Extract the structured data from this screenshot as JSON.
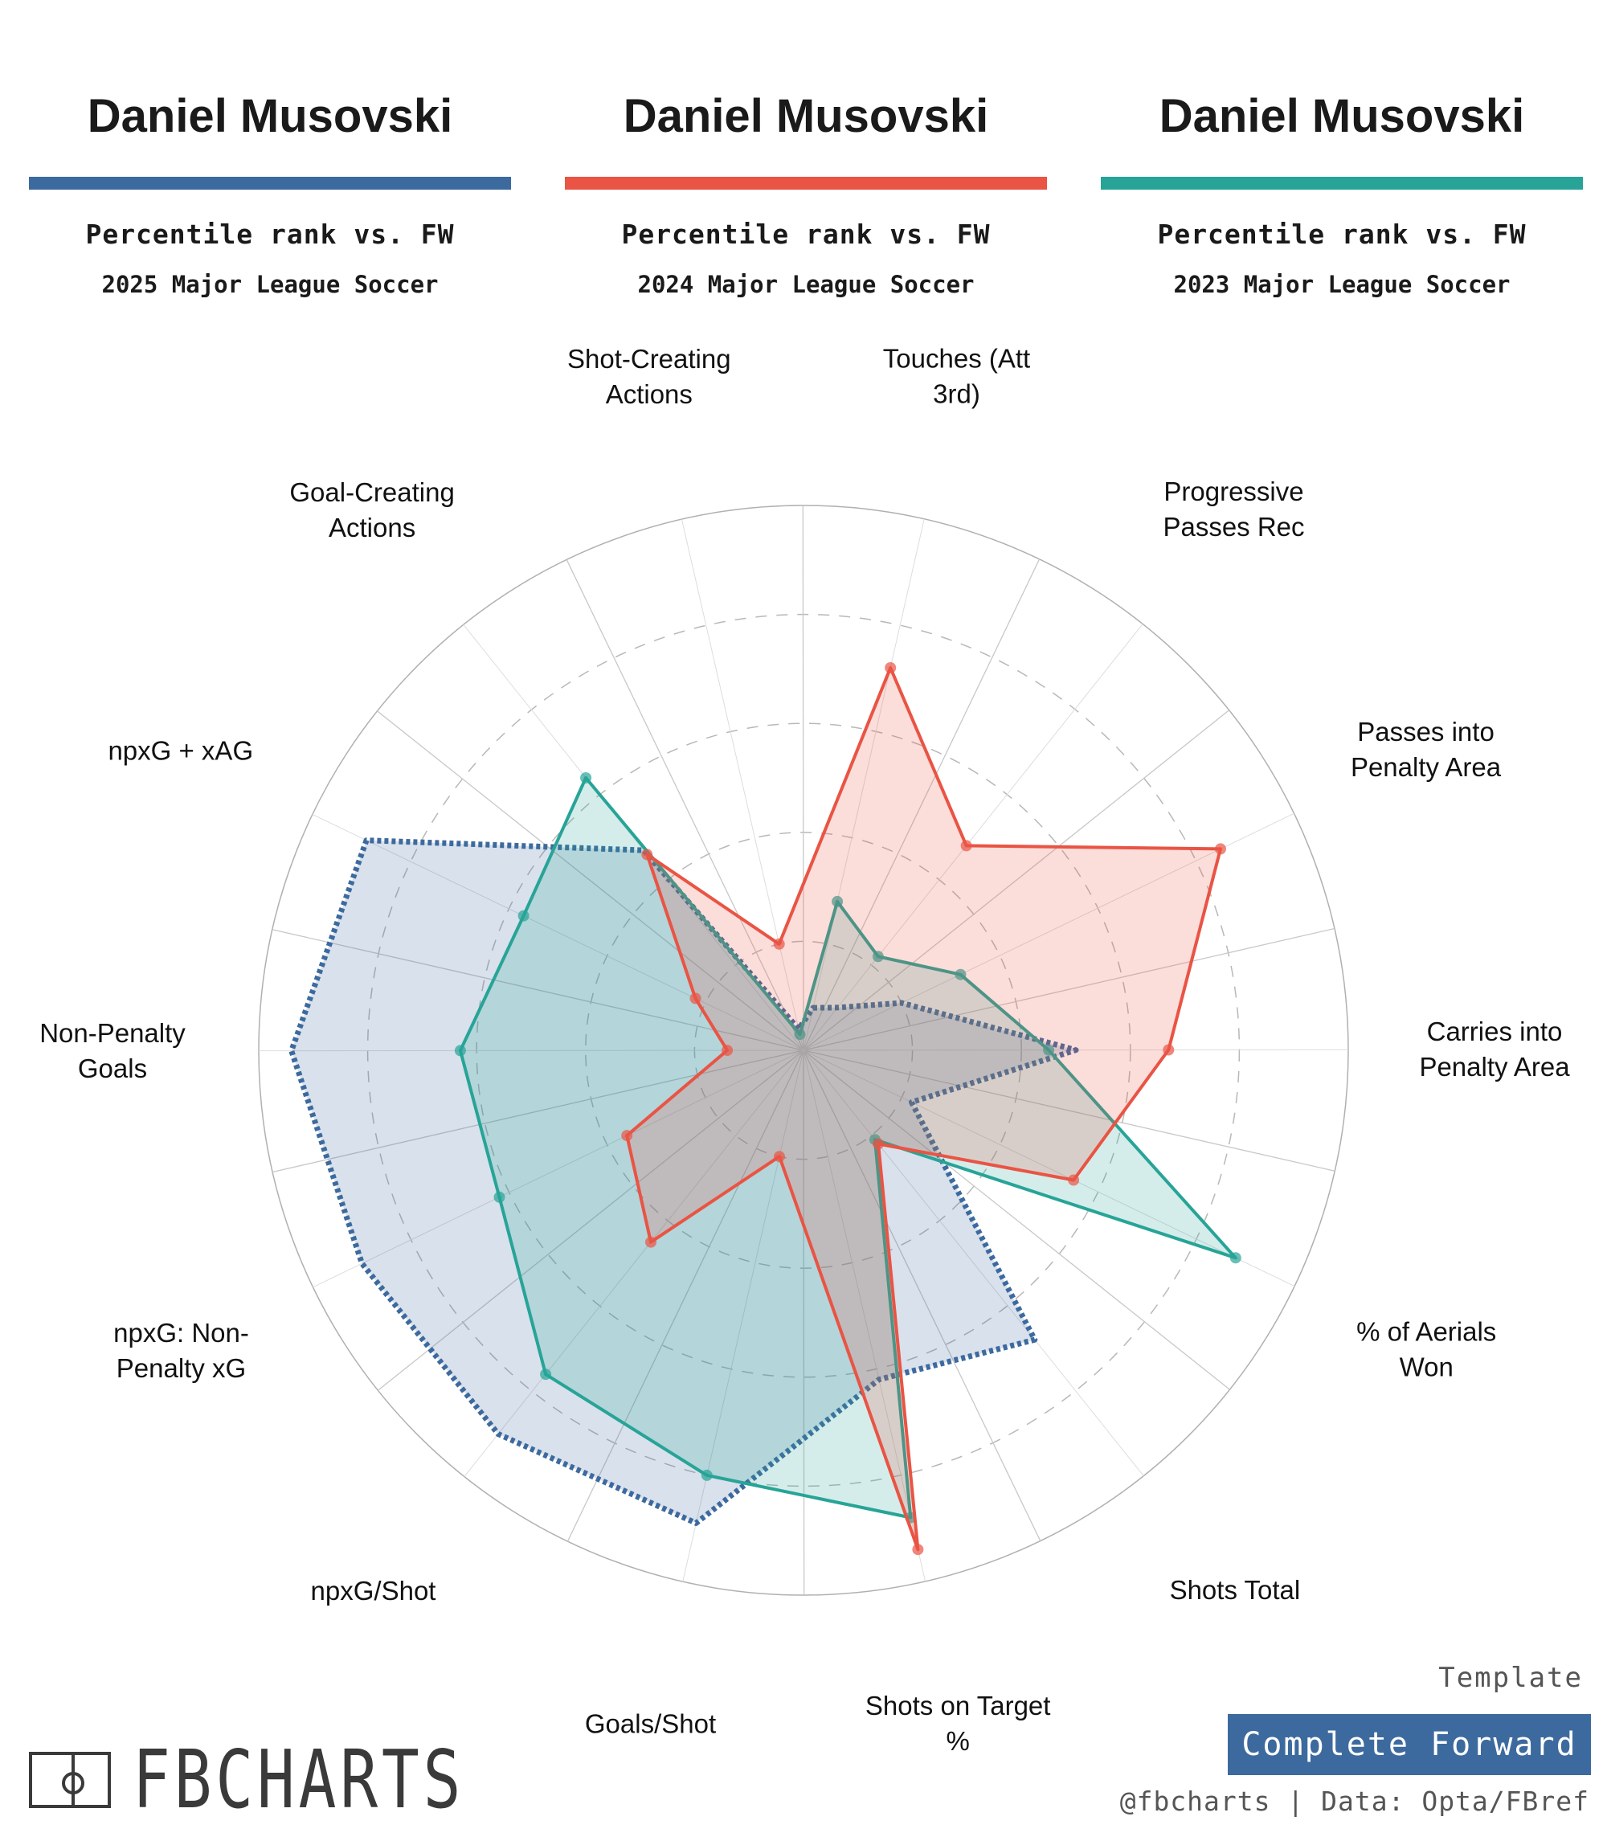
{
  "headers": [
    {
      "name": "Daniel Musovski",
      "subtitle": "Percentile rank vs. FW",
      "league": "2025 Major League Soccer",
      "color": "#3d6a9e"
    },
    {
      "name": "Daniel Musovski",
      "subtitle": "Percentile rank vs. FW",
      "league": "2024 Major League Soccer",
      "color": "#e95444"
    },
    {
      "name": "Daniel Musovski",
      "subtitle": "Percentile rank vs. FW",
      "league": "2023 Major League Soccer",
      "color": "#27a497"
    }
  ],
  "chart_data": {
    "type": "radar",
    "scale": "percentile",
    "range": [
      0,
      100
    ],
    "grid": "dashed rings",
    "categories": [
      "Touches (Att 3rd)",
      "Progressive Passes Rec",
      "Passes into Penalty Area",
      "Carries into Penalty Area",
      "% of Aerials Won",
      "Shots Total",
      "Shots on Target %",
      "Goals/Shot",
      "npxG/Shot",
      "npxG: Non-Penalty xG",
      "Non-Penalty Goals",
      "npxG + xAG",
      "Goal-Creating Actions",
      "Shot-Creating Actions"
    ],
    "axis_labels": [
      [
        "Touches (Att",
        "3rd)"
      ],
      [
        "Progressive",
        "Passes Rec"
      ],
      [
        "Passes into",
        "Penalty Area"
      ],
      [
        "Carries into",
        "Penalty Area"
      ],
      [
        "% of Aerials",
        "Won"
      ],
      [
        "Shots Total"
      ],
      [
        "Shots on Target",
        "%"
      ],
      [
        "Goals/Shot"
      ],
      [
        "npxG/Shot"
      ],
      [
        "npxG: Non-",
        "Penalty xG"
      ],
      [
        "Non-Penalty",
        "Goals"
      ],
      [
        "npxG + xAG"
      ],
      [
        "Goal-Creating",
        "Actions"
      ],
      [
        "Shot-Creating",
        "Actions"
      ]
    ],
    "series": [
      {
        "season": "2025",
        "color": "#3d6a9e",
        "style": "dotted",
        "values": [
          8,
          10,
          20,
          50,
          22,
          68,
          62,
          89,
          90,
          90,
          94,
          89,
          47,
          4
        ]
      },
      {
        "season": "2023",
        "color": "#27a497",
        "style": "solid",
        "values": [
          28,
          22,
          32,
          45,
          88,
          21,
          88,
          80,
          76,
          62,
          63,
          57,
          64,
          3
        ]
      },
      {
        "season": "2024",
        "color": "#e95444",
        "style": "solid",
        "values": [
          72,
          48,
          85,
          67,
          55,
          22,
          94,
          20,
          45,
          36,
          14,
          22,
          46,
          20
        ]
      }
    ]
  },
  "branding": {
    "logo_text": "FBCHARTS",
    "template_label": "Template",
    "template_name": "Complete Forward",
    "template_color": "#3d6a9e",
    "credit": "@fbcharts | Data: Opta/FBref"
  }
}
